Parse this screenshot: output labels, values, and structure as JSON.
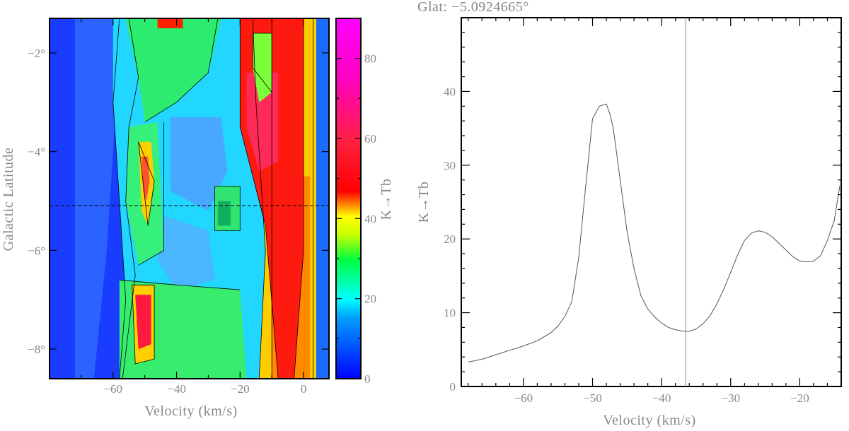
{
  "chart_data": [
    {
      "type": "heatmap",
      "title": "",
      "xlabel": "Velocity (km/s)",
      "ylabel": "Galactic Latitude",
      "xlim": [
        -80,
        8
      ],
      "ylim": [
        -8.6,
        -1.3
      ],
      "x_ticks": [
        "−60",
        "−40",
        "−20",
        "0"
      ],
      "y_ticks": [
        "−2°",
        "−4°",
        "−6°",
        "−8°"
      ],
      "colorbar": {
        "label": "K→Tb",
        "range": [
          0,
          90
        ],
        "ticks": [
          "0",
          "20",
          "40",
          "60",
          "80"
        ],
        "colors": [
          "#0000ff",
          "#00c8ff",
          "#00ff40",
          "#ffff00",
          "#ff0000",
          "#ff00ff"
        ]
      },
      "cut_latitude": -5.0924665,
      "features": [
        {
          "name": "ridge",
          "v_min": -15,
          "v_max": 2,
          "tb": 55
        },
        {
          "name": "clump",
          "v": -50,
          "b": -4.5,
          "tb": 35
        },
        {
          "name": "clump",
          "v": -50,
          "b": -7.1,
          "tb": 60
        },
        {
          "name": "clump",
          "v": -25,
          "b": -5.2,
          "tb": 28
        }
      ]
    },
    {
      "type": "line",
      "title": "Glat: −5.0924665°",
      "xlabel": "Velocity (km/s)",
      "ylabel": "K→Tb",
      "xlim": [
        -69,
        -14
      ],
      "ylim": [
        0,
        50
      ],
      "x_ticks": [
        "−60",
        "−50",
        "−40",
        "−30",
        "−20"
      ],
      "y_ticks": [
        "0",
        "10",
        "20",
        "30",
        "40"
      ],
      "marker_velocity": -36.5,
      "x": [
        -68,
        -66,
        -64,
        -62,
        -60,
        -58,
        -56,
        -55,
        -54,
        -53,
        -52,
        -51,
        -50,
        -49,
        -48,
        -47.5,
        -47,
        -46,
        -45,
        -44,
        -43,
        -42,
        -41,
        -40,
        -39,
        -38,
        -37,
        -36,
        -35,
        -34,
        -33,
        -32,
        -31,
        -30,
        -29,
        -28,
        -27,
        -26,
        -25,
        -24,
        -23,
        -22,
        -21,
        -20,
        -19,
        -18,
        -17,
        -16,
        -15,
        -14.2
      ],
      "y": [
        3.3,
        3.7,
        4.3,
        4.9,
        5.5,
        6.2,
        7.3,
        8.2,
        9.5,
        11.5,
        17.5,
        27,
        36.3,
        38,
        38.3,
        37,
        35,
        28,
        21,
        16,
        12.3,
        10.5,
        9.4,
        8.6,
        8.0,
        7.7,
        7.5,
        7.5,
        7.8,
        8.5,
        9.6,
        11.2,
        13.2,
        15.5,
        17.8,
        19.8,
        20.8,
        21.1,
        20.9,
        20.3,
        19.4,
        18.5,
        17.6,
        17.0,
        16.9,
        17.0,
        17.7,
        19.8,
        22.5,
        27.2
      ]
    }
  ]
}
